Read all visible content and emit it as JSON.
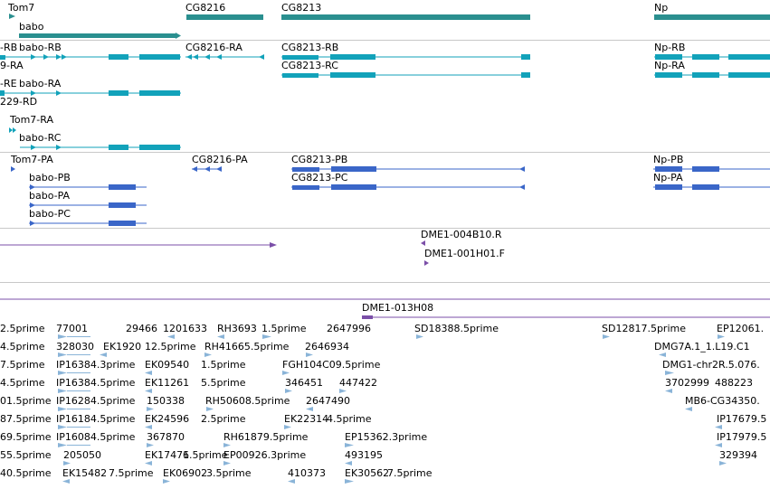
{
  "tracks": {
    "genes": {
      "labels": [
        "Tom7",
        "babo",
        "CG8216",
        "CG8213",
        "Np"
      ]
    },
    "transcripts": {
      "labels": [
        "-RB",
        "babo-RB",
        "9-RA",
        "-RE",
        "babo-RA",
        "229-RD",
        "Tom7-RA",
        "babo-RC",
        "CG8216-RA",
        "CG8213-RB",
        "CG8213-RC",
        "Np-RB",
        "Np-RA"
      ]
    },
    "proteins": {
      "labels": [
        "Tom7-PA",
        "babo-PB",
        "babo-PA",
        "babo-PC",
        "CG8216-PA",
        "CG8213-PB",
        "CG8213-PC",
        "Np-PB",
        "Np-PA"
      ]
    },
    "cdna": {
      "labels": [
        "DME1-004B10.R",
        "DME1-001H01.F"
      ]
    },
    "bac": {
      "labels": [
        "DME1-013H08"
      ]
    },
    "est": {
      "rows": [
        [
          "2.5prime",
          "77001",
          "29466",
          "1201633",
          "RH3693",
          "1.5prime",
          "2647996",
          "SD18388.5prime",
          "SD12817.5prime",
          "EP12061."
        ],
        [
          "4.5prime",
          "328030",
          "EK1920",
          "12.5prime",
          "RH41665.5prime",
          "2646934",
          "DMG7A.1_1.L19.C1"
        ],
        [
          "7.5prime",
          "IP16384.3prime",
          "EK09540",
          "1.5prime",
          "FGH104C09.5prime",
          "DMG1-chr2R.5.076."
        ],
        [
          "4.5prime",
          "IP16384.5prime",
          "EK11261",
          "5.5prime",
          "346451",
          "447422",
          "3702999",
          "488223"
        ],
        [
          "01.5prime",
          "IP16284.5prime",
          "150338",
          "RH50608.5prime",
          "2647490",
          "MB6-CG34350."
        ],
        [
          "87.5prime",
          "IP16184.5prime",
          "EK24596",
          "2.5prime",
          "EK22314",
          "4.5prime",
          "IP17679.5"
        ],
        [
          "69.5prime",
          "IP16084.5prime",
          "367870",
          "RH61879.5prime",
          "EP15362.3prime",
          "IP17979.5"
        ],
        [
          "55.5prime",
          "205050",
          "EK17471",
          "6.5prime",
          "EP00926.3prime",
          "493195",
          "329394"
        ],
        [
          "40.5prime",
          "EK15482",
          "7.5prime",
          "EK06902",
          "3.5prime",
          "410373",
          "EK30562",
          "7.5prime"
        ]
      ]
    }
  },
  "colors": {
    "gene": "#2a8f8f",
    "transcript": "#12a2ba",
    "protein": "#3a66c8",
    "cdna": "#7b4fa8",
    "est": "#8ab4d8",
    "separator": "#c8c8c8"
  }
}
